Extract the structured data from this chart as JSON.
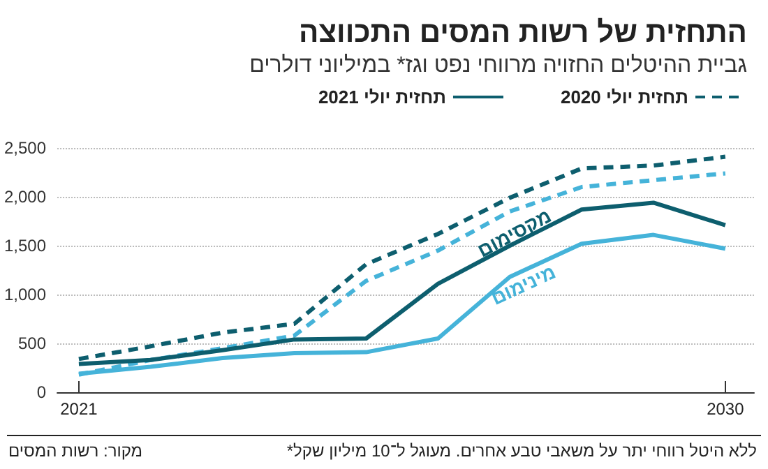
{
  "chart_data": {
    "type": "line",
    "title": "התחזית של רשות המסים התכווצה",
    "subtitle": "גביית ההיטלים החזויה מרווחי נפט וגז* במיליוני דולרים",
    "x": [
      2021,
      2022,
      2023,
      2024,
      2025,
      2026,
      2027,
      2028,
      2029,
      2030
    ],
    "xlim": [
      2020.7,
      2030.4
    ],
    "xticks": [
      2021,
      2030
    ],
    "ylim": [
      0,
      2500
    ],
    "yticks": [
      0,
      500,
      {
        "value": 1000,
        "label": "1,000"
      },
      {
        "value": 1500,
        "label": "1,500"
      },
      {
        "value": 2000,
        "label": "2,000"
      },
      {
        "value": 2500,
        "label": "2,500"
      }
    ],
    "series": [
      {
        "name": "תחזית יולי 2020",
        "color": "#0d5e6e",
        "line_style": "dashed",
        "values": [
          340,
          470,
          610,
          700,
          1310,
          1620,
          1990,
          2290,
          2320,
          2410
        ]
      },
      {
        "color": "#45b3d9",
        "line_style": "dashed",
        "values": [
          180,
          330,
          450,
          580,
          1140,
          1450,
          1850,
          2100,
          2170,
          2240
        ]
      },
      {
        "name": "תחזית יולי 2021",
        "color": "#0d5e6e",
        "line_style": "solid",
        "values": [
          290,
          330,
          430,
          540,
          550,
          1110,
          1500,
          1870,
          1940,
          1710
        ]
      },
      {
        "color": "#45b3d9",
        "line_style": "solid",
        "values": [
          190,
          260,
          350,
          400,
          410,
          550,
          1180,
          1520,
          1610,
          1470
        ]
      }
    ],
    "annotations": [
      "מקסימום",
      "מינימום",
      "*ללא היטל רווחי יתר על משאבי טבע אחרים. מעוגל ל־10 מיליון שקל",
      "מקור: רשות המסים"
    ],
    "grid": "y",
    "legend": "top right",
    "marker": "none"
  }
}
